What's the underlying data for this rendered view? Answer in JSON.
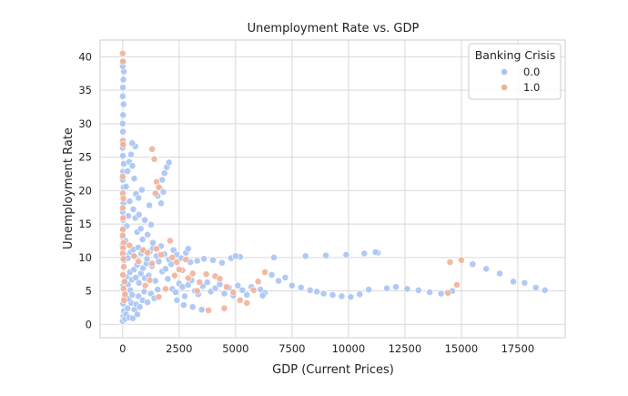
{
  "chart_data": {
    "type": "scatter",
    "title": "Unemployment Rate vs. GDP",
    "xlabel": "GDP (Current Prices)",
    "ylabel": "Unemployment Rate",
    "xlim": [
      -1000,
      19600
    ],
    "ylim": [
      -2,
      42.5
    ],
    "xticks": [
      0,
      2500,
      5000,
      7500,
      10000,
      12500,
      15000,
      17500
    ],
    "yticks": [
      0,
      5,
      10,
      15,
      20,
      25,
      30,
      35,
      40
    ],
    "grid": true,
    "legend": {
      "title": "Banking Crisis",
      "position": "top-right"
    },
    "series": [
      {
        "name": "0.0",
        "color": "#a9c4f4",
        "points": [
          [
            0,
            0.5
          ],
          [
            30,
            1.2
          ],
          [
            60,
            2.0
          ],
          [
            20,
            3.1
          ],
          [
            100,
            0.8
          ],
          [
            150,
            1.5
          ],
          [
            220,
            2.4
          ],
          [
            300,
            1.0
          ],
          [
            380,
            3.2
          ],
          [
            450,
            0.9
          ],
          [
            520,
            2.2
          ],
          [
            650,
            1.5
          ],
          [
            80,
            4.0
          ],
          [
            160,
            4.8
          ],
          [
            260,
            3.8
          ],
          [
            340,
            5.1
          ],
          [
            420,
            4.4
          ],
          [
            600,
            3.0
          ],
          [
            700,
            4.2
          ],
          [
            760,
            2.6
          ],
          [
            880,
            3.6
          ],
          [
            950,
            4.9
          ],
          [
            1100,
            3.3
          ],
          [
            1250,
            4.6
          ],
          [
            1400,
            3.9
          ],
          [
            1550,
            5.2
          ],
          [
            30,
            5.8
          ],
          [
            90,
            6.4
          ],
          [
            170,
            7.1
          ],
          [
            240,
            6.0
          ],
          [
            320,
            7.8
          ],
          [
            410,
            6.7
          ],
          [
            500,
            8.2
          ],
          [
            580,
            7.0
          ],
          [
            640,
            8.9
          ],
          [
            720,
            6.2
          ],
          [
            800,
            7.6
          ],
          [
            900,
            8.4
          ],
          [
            980,
            6.9
          ],
          [
            1050,
            9.1
          ],
          [
            1150,
            7.3
          ],
          [
            1300,
            8.7
          ],
          [
            1450,
            6.5
          ],
          [
            1600,
            9.4
          ],
          [
            1750,
            7.9
          ],
          [
            1900,
            8.3
          ],
          [
            2000,
            6.8
          ],
          [
            2150,
            9.0
          ],
          [
            60,
            9.6
          ],
          [
            140,
            10.3
          ],
          [
            230,
            9.9
          ],
          [
            350,
            10.8
          ],
          [
            470,
            11.2
          ],
          [
            560,
            10.1
          ],
          [
            690,
            11.5
          ],
          [
            820,
            10.6
          ],
          [
            960,
            11.0
          ],
          [
            1080,
            9.8
          ],
          [
            1200,
            10.9
          ],
          [
            1350,
            11.4
          ],
          [
            1500,
            10.2
          ],
          [
            1700,
            11.7
          ],
          [
            1850,
            10.5
          ],
          [
            2050,
            9.7
          ],
          [
            2250,
            11.1
          ],
          [
            2400,
            10.4
          ],
          [
            2600,
            9.9
          ],
          [
            2800,
            10.7
          ],
          [
            3000,
            9.3
          ],
          [
            2200,
            5.3
          ],
          [
            2350,
            4.8
          ],
          [
            2500,
            6.1
          ],
          [
            2650,
            5.6
          ],
          [
            2750,
            4.2
          ],
          [
            2900,
            5.9
          ],
          [
            3050,
            6.6
          ],
          [
            3200,
            5.0
          ],
          [
            3350,
            4.5
          ],
          [
            3550,
            5.7
          ],
          [
            3750,
            6.3
          ],
          [
            3900,
            4.9
          ],
          [
            4100,
            5.4
          ],
          [
            4300,
            6.0
          ],
          [
            4500,
            4.6
          ],
          [
            4700,
            5.5
          ],
          [
            4900,
            4.3
          ],
          [
            5100,
            5.8
          ],
          [
            5300,
            5.1
          ],
          [
            5500,
            4.4
          ],
          [
            5700,
            5.6
          ],
          [
            2400,
            3.6
          ],
          [
            2700,
            2.9
          ],
          [
            3100,
            2.6
          ],
          [
            3500,
            2.2
          ],
          [
            3300,
            9.5
          ],
          [
            3600,
            9.8
          ],
          [
            4000,
            9.6
          ],
          [
            4400,
            9.2
          ],
          [
            4800,
            9.9
          ],
          [
            5200,
            10.1
          ],
          [
            2900,
            11.3
          ],
          [
            6100,
            5.2
          ],
          [
            6300,
            4.7
          ],
          [
            6600,
            7.4
          ],
          [
            6900,
            6.5
          ],
          [
            7200,
            7.0
          ],
          [
            7500,
            5.8
          ],
          [
            7900,
            5.5
          ],
          [
            8300,
            5.1
          ],
          [
            8600,
            4.9
          ],
          [
            8900,
            4.6
          ],
          [
            9300,
            4.4
          ],
          [
            9700,
            4.2
          ],
          [
            10100,
            4.1
          ],
          [
            10500,
            4.5
          ],
          [
            10900,
            5.2
          ],
          [
            11300,
            10.7
          ],
          [
            11700,
            5.4
          ],
          [
            12100,
            5.6
          ],
          [
            12600,
            5.3
          ],
          [
            13100,
            5.1
          ],
          [
            13600,
            4.8
          ],
          [
            14100,
            4.6
          ],
          [
            14600,
            5.0
          ],
          [
            8100,
            10.2
          ],
          [
            9000,
            10.3
          ],
          [
            9900,
            10.4
          ],
          [
            10700,
            10.6
          ],
          [
            11200,
            10.8
          ],
          [
            15500,
            9.0
          ],
          [
            16100,
            8.3
          ],
          [
            16700,
            7.6
          ],
          [
            17300,
            6.4
          ],
          [
            17800,
            6.2
          ],
          [
            18300,
            5.5
          ],
          [
            18700,
            5.1
          ],
          [
            6200,
            4.3
          ],
          [
            5000,
            10.2
          ],
          [
            6700,
            10.0
          ],
          [
            0,
            11.8
          ],
          [
            10,
            13.0
          ],
          [
            0,
            14.2
          ],
          [
            20,
            15.6
          ],
          [
            0,
            16.8
          ],
          [
            30,
            18.1
          ],
          [
            10,
            19.3
          ],
          [
            40,
            20.5
          ],
          [
            0,
            21.6
          ],
          [
            20,
            22.8
          ],
          [
            50,
            24.0
          ],
          [
            10,
            25.2
          ],
          [
            0,
            26.4
          ],
          [
            30,
            27.5
          ],
          [
            10,
            28.8
          ],
          [
            0,
            30.0
          ],
          [
            20,
            31.3
          ],
          [
            40,
            32.9
          ],
          [
            0,
            34.1
          ],
          [
            10,
            35.4
          ],
          [
            30,
            36.6
          ],
          [
            50,
            37.8
          ],
          [
            0,
            38.6
          ],
          [
            20,
            39.3
          ],
          [
            120,
            12.5
          ],
          [
            180,
            14.7
          ],
          [
            250,
            16.2
          ],
          [
            310,
            18.4
          ],
          [
            150,
            20.6
          ],
          [
            220,
            22.9
          ],
          [
            290,
            24.3
          ],
          [
            370,
            25.4
          ],
          [
            430,
            23.7
          ],
          [
            510,
            21.8
          ],
          [
            590,
            19.5
          ],
          [
            470,
            17.2
          ],
          [
            560,
            15.9
          ],
          [
            640,
            13.8
          ],
          [
            720,
            16.4
          ],
          [
            800,
            14.3
          ],
          [
            880,
            12.7
          ],
          [
            980,
            15.6
          ],
          [
            1100,
            13.4
          ],
          [
            1180,
            17.8
          ],
          [
            1260,
            14.9
          ],
          [
            1340,
            12.2
          ],
          [
            700,
            18.9
          ],
          [
            850,
            20.1
          ],
          [
            560,
            26.6
          ],
          [
            420,
            27.1
          ],
          [
            1550,
            19.2
          ],
          [
            1650,
            20.4
          ],
          [
            1750,
            21.6
          ],
          [
            1850,
            22.6
          ],
          [
            1950,
            23.5
          ],
          [
            2050,
            24.2
          ],
          [
            1700,
            18.1
          ],
          [
            1800,
            19.8
          ]
        ]
      },
      {
        "name": "1.0",
        "color": "#f2b199",
        "points": [
          [
            0,
            40.5
          ],
          [
            10,
            39.3
          ],
          [
            0,
            27.4
          ],
          [
            20,
            26.9
          ],
          [
            0,
            22.1
          ],
          [
            10,
            19.6
          ],
          [
            30,
            18.8
          ],
          [
            0,
            17.4
          ],
          [
            20,
            15.9
          ],
          [
            10,
            14.2
          ],
          [
            0,
            13.3
          ],
          [
            40,
            12.2
          ],
          [
            20,
            11.4
          ],
          [
            0,
            10.6
          ],
          [
            30,
            9.8
          ],
          [
            50,
            8.6
          ],
          [
            10,
            7.4
          ],
          [
            80,
            6.4
          ],
          [
            40,
            5.3
          ],
          [
            100,
            4.5
          ],
          [
            60,
            3.6
          ],
          [
            300,
            11.8
          ],
          [
            500,
            10.2
          ],
          [
            700,
            9.4
          ],
          [
            900,
            11.1
          ],
          [
            1100,
            10.7
          ],
          [
            1300,
            9.1
          ],
          [
            1500,
            11.3
          ],
          [
            1700,
            10.4
          ],
          [
            2100,
            12.5
          ],
          [
            2200,
            10.0
          ],
          [
            2400,
            9.3
          ],
          [
            2650,
            8.1
          ],
          [
            2800,
            9.7
          ],
          [
            1300,
            26.2
          ],
          [
            1400,
            24.7
          ],
          [
            1500,
            21.3
          ],
          [
            1600,
            20.5
          ],
          [
            1450,
            19.6
          ],
          [
            1000,
            5.8
          ],
          [
            1200,
            6.6
          ],
          [
            1600,
            4.1
          ],
          [
            1900,
            5.3
          ],
          [
            2300,
            7.3
          ],
          [
            2500,
            8.2
          ],
          [
            2900,
            6.9
          ],
          [
            3100,
            7.6
          ],
          [
            3400,
            6.3
          ],
          [
            3700,
            7.5
          ],
          [
            4100,
            7.2
          ],
          [
            4300,
            6.8
          ],
          [
            4600,
            5.6
          ],
          [
            4900,
            4.8
          ],
          [
            5200,
            3.6
          ],
          [
            5500,
            3.2
          ],
          [
            5800,
            5.1
          ],
          [
            6000,
            6.4
          ],
          [
            6300,
            7.8
          ],
          [
            4500,
            2.4
          ],
          [
            3800,
            2.1
          ],
          [
            3300,
            5.0
          ],
          [
            14500,
            9.3
          ],
          [
            15000,
            9.6
          ],
          [
            14800,
            5.9
          ],
          [
            14400,
            4.7
          ]
        ]
      }
    ]
  }
}
